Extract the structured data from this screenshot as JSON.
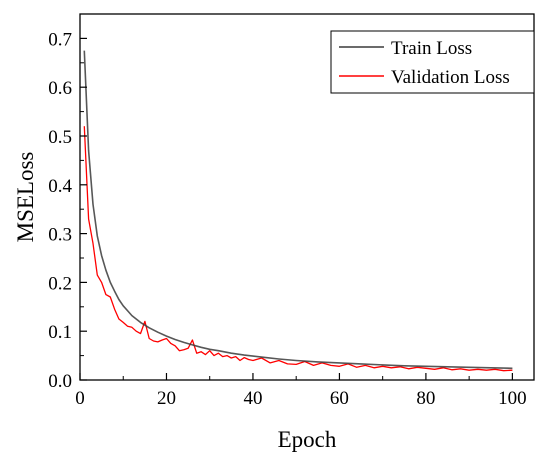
{
  "chart_data": {
    "type": "line",
    "xlabel": "Epoch",
    "ylabel": "MSELoss",
    "xlim": [
      0,
      105
    ],
    "ylim": [
      0,
      0.75
    ],
    "xticks": [
      "0",
      "20",
      "40",
      "60",
      "80",
      "100"
    ],
    "yticks": [
      "0.0",
      "0.1",
      "0.2",
      "0.3",
      "0.4",
      "0.5",
      "0.6",
      "0.7"
    ],
    "legend_position": "top-right",
    "grid": false,
    "series": [
      {
        "name": "Train Loss",
        "color": "#3a3a3a",
        "x": [
          1,
          2,
          3,
          4,
          5,
          6,
          7,
          8,
          9,
          10,
          12,
          14,
          16,
          18,
          20,
          22,
          24,
          26,
          28,
          30,
          32,
          35,
          38,
          40,
          43,
          46,
          50,
          55,
          60,
          65,
          70,
          75,
          80,
          85,
          90,
          95,
          100
        ],
        "y": [
          0.675,
          0.47,
          0.36,
          0.295,
          0.255,
          0.225,
          0.2,
          0.182,
          0.165,
          0.152,
          0.132,
          0.118,
          0.107,
          0.098,
          0.09,
          0.083,
          0.077,
          0.072,
          0.067,
          0.063,
          0.06,
          0.055,
          0.051,
          0.049,
          0.046,
          0.043,
          0.04,
          0.037,
          0.035,
          0.033,
          0.031,
          0.029,
          0.028,
          0.027,
          0.026,
          0.025,
          0.024
        ]
      },
      {
        "name": "Validation Loss",
        "color": "#ff0000",
        "x": [
          1,
          2,
          3,
          4,
          5,
          6,
          7,
          8,
          9,
          10,
          11,
          12,
          13,
          14,
          15,
          16,
          17,
          18,
          19,
          20,
          21,
          22,
          23,
          24,
          25,
          26,
          27,
          28,
          29,
          30,
          31,
          32,
          33,
          34,
          35,
          36,
          37,
          38,
          39,
          40,
          42,
          44,
          46,
          48,
          50,
          52,
          54,
          56,
          58,
          60,
          62,
          64,
          66,
          68,
          70,
          72,
          74,
          76,
          78,
          80,
          82,
          84,
          86,
          88,
          90,
          92,
          94,
          96,
          98,
          100
        ],
        "y": [
          0.52,
          0.33,
          0.28,
          0.215,
          0.2,
          0.175,
          0.17,
          0.145,
          0.125,
          0.118,
          0.11,
          0.108,
          0.1,
          0.095,
          0.12,
          0.085,
          0.08,
          0.078,
          0.082,
          0.085,
          0.075,
          0.07,
          0.06,
          0.062,
          0.065,
          0.082,
          0.055,
          0.058,
          0.052,
          0.06,
          0.05,
          0.055,
          0.048,
          0.05,
          0.045,
          0.048,
          0.04,
          0.046,
          0.042,
          0.04,
          0.045,
          0.035,
          0.04,
          0.033,
          0.032,
          0.038,
          0.03,
          0.035,
          0.03,
          0.028,
          0.033,
          0.026,
          0.03,
          0.025,
          0.028,
          0.025,
          0.027,
          0.023,
          0.026,
          0.024,
          0.022,
          0.025,
          0.021,
          0.023,
          0.02,
          0.022,
          0.02,
          0.022,
          0.019,
          0.02
        ]
      }
    ]
  }
}
